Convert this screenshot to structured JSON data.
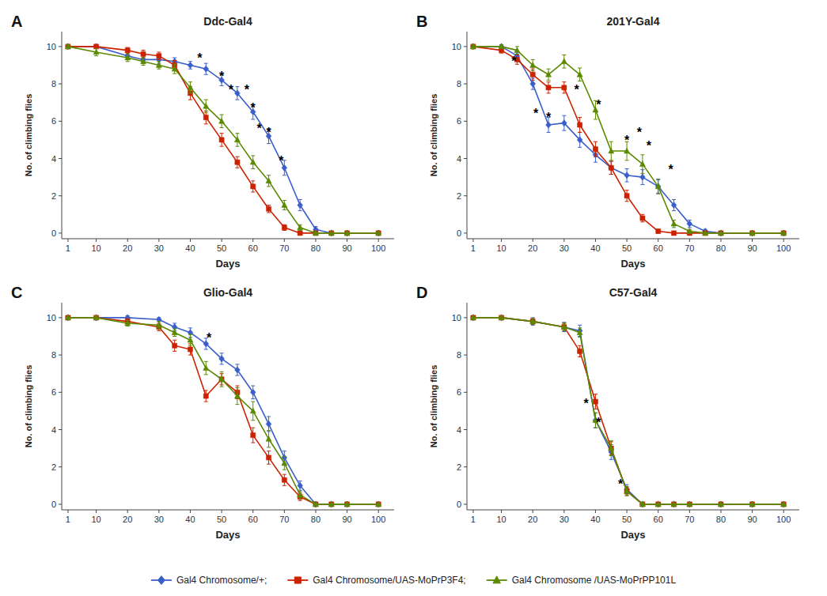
{
  "chart_data": [
    {
      "type": "line",
      "label": "A",
      "title": "Ddc-Gal4",
      "xlabel": "Days",
      "ylabel": "No. of climbing flies",
      "xlim": [
        -1,
        105
      ],
      "ylim": [
        -0.3,
        10.8
      ],
      "xticks": [
        1,
        10,
        20,
        30,
        40,
        50,
        60,
        70,
        80,
        90,
        100
      ],
      "yticks": [
        0,
        2,
        4,
        6,
        8,
        10
      ],
      "grid": false,
      "legend": "bottom",
      "x": [
        1,
        10,
        20,
        25,
        30,
        35,
        40,
        45,
        50,
        55,
        60,
        65,
        70,
        75,
        80,
        85,
        90,
        100
      ],
      "series": [
        {
          "name": "Gal4 Chromosome/+;",
          "color": "#3A5FCD",
          "marker": "diamond",
          "values": [
            10,
            10,
            9.5,
            9.3,
            9.3,
            9.2,
            9.0,
            8.8,
            8.2,
            7.5,
            6.5,
            5.2,
            3.5,
            1.5,
            0.2,
            0.0,
            0.0,
            0.0
          ],
          "errors": [
            0.1,
            0.1,
            0.2,
            0.2,
            0.2,
            0.2,
            0.2,
            0.3,
            0.3,
            0.35,
            0.4,
            0.4,
            0.4,
            0.3,
            0.15,
            0.0,
            0.0,
            0.0
          ]
        },
        {
          "name": "Gal4 Chromosome/UAS-MoPrP3F4;",
          "color": "#CC2200",
          "marker": "square",
          "values": [
            10,
            10,
            9.8,
            9.6,
            9.5,
            9.0,
            7.5,
            6.2,
            5.0,
            3.8,
            2.5,
            1.3,
            0.3,
            0.0,
            0.0,
            0.0,
            0.0,
            0.0
          ],
          "errors": [
            0.1,
            0.1,
            0.15,
            0.2,
            0.2,
            0.25,
            0.35,
            0.35,
            0.35,
            0.3,
            0.3,
            0.2,
            0.15,
            0.0,
            0.0,
            0.0,
            0.0,
            0.0
          ]
        },
        {
          "name": "Gal4 Chromosome /UAS-MoPrPP101L",
          "color": "#5B8A00",
          "marker": "triangle",
          "values": [
            10,
            9.7,
            9.4,
            9.2,
            9.0,
            8.8,
            7.8,
            6.8,
            6.0,
            5.0,
            3.8,
            2.8,
            1.5,
            0.3,
            0.0,
            0.0,
            0.0,
            0.0
          ],
          "errors": [
            0.1,
            0.2,
            0.2,
            0.2,
            0.2,
            0.25,
            0.3,
            0.35,
            0.35,
            0.35,
            0.35,
            0.3,
            0.25,
            0.15,
            0.0,
            0.0,
            0.0,
            0.0
          ]
        }
      ],
      "annotations": [
        {
          "text": "*",
          "x": 43,
          "y": 9.5
        },
        {
          "text": "*",
          "x": 50,
          "y": 8.5
        },
        {
          "text": "*",
          "x": 53,
          "y": 7.8
        },
        {
          "text": "*",
          "x": 58,
          "y": 7.8
        },
        {
          "text": "*",
          "x": 60,
          "y": 6.8
        },
        {
          "text": "*",
          "x": 62,
          "y": 5.7
        },
        {
          "text": "*",
          "x": 65,
          "y": 5.5
        },
        {
          "text": "*",
          "x": 69,
          "y": 4.0
        }
      ]
    },
    {
      "type": "line",
      "label": "B",
      "title": "201Y-Gal4",
      "xlabel": "Days",
      "ylabel": "No. of climbing flies",
      "xlim": [
        -1,
        105
      ],
      "ylim": [
        -0.3,
        10.8
      ],
      "xticks": [
        1,
        10,
        20,
        30,
        40,
        50,
        60,
        70,
        80,
        90,
        100
      ],
      "yticks": [
        0,
        2,
        4,
        6,
        8,
        10
      ],
      "grid": false,
      "x": [
        1,
        10,
        15,
        20,
        25,
        30,
        35,
        40,
        45,
        50,
        55,
        60,
        65,
        70,
        75,
        80,
        90,
        100
      ],
      "series": [
        {
          "color": "#3A5FCD",
          "marker": "diamond",
          "values": [
            10,
            10,
            9.5,
            8.0,
            5.8,
            5.9,
            5.0,
            4.2,
            3.5,
            3.1,
            3.0,
            2.5,
            1.5,
            0.5,
            0.1,
            0.0,
            0.0,
            0.0
          ],
          "errors": [
            0.1,
            0.1,
            0.2,
            0.3,
            0.4,
            0.4,
            0.4,
            0.4,
            0.35,
            0.35,
            0.4,
            0.35,
            0.3,
            0.2,
            0.1,
            0.0,
            0.0,
            0.0
          ]
        },
        {
          "color": "#CC2200",
          "marker": "square",
          "values": [
            10,
            9.8,
            9.3,
            8.5,
            7.8,
            7.8,
            5.8,
            4.5,
            3.5,
            2.0,
            0.8,
            0.1,
            0.0,
            0.0,
            0.0,
            0.0,
            0.0,
            0.0
          ],
          "errors": [
            0.1,
            0.15,
            0.25,
            0.3,
            0.3,
            0.3,
            0.4,
            0.4,
            0.35,
            0.3,
            0.2,
            0.1,
            0.0,
            0.0,
            0.0,
            0.0,
            0.0,
            0.0
          ]
        },
        {
          "color": "#5B8A00",
          "marker": "triangle",
          "values": [
            10,
            10,
            9.8,
            9.0,
            8.5,
            9.2,
            8.5,
            6.6,
            4.4,
            4.4,
            3.7,
            2.5,
            0.5,
            0.1,
            0.0,
            0.0,
            0.0,
            0.0
          ],
          "errors": [
            0.1,
            0.1,
            0.2,
            0.3,
            0.3,
            0.35,
            0.35,
            0.5,
            0.5,
            0.5,
            0.5,
            0.4,
            0.2,
            0.1,
            0.0,
            0.0,
            0.0,
            0.0
          ]
        }
      ],
      "annotations": [
        {
          "text": "*",
          "x": 14,
          "y": 9.3
        },
        {
          "text": "*",
          "x": 21,
          "y": 6.5
        },
        {
          "text": "*",
          "x": 25,
          "y": 6.3
        },
        {
          "text": "*",
          "x": 34,
          "y": 7.8
        },
        {
          "text": "*",
          "x": 41,
          "y": 7.0
        },
        {
          "text": "*",
          "x": 50,
          "y": 5.1
        },
        {
          "text": "*",
          "x": 54,
          "y": 5.5
        },
        {
          "text": "*",
          "x": 57,
          "y": 4.8
        },
        {
          "text": "*",
          "x": 64,
          "y": 3.5
        }
      ]
    },
    {
      "type": "line",
      "label": "C",
      "title": "Glio-Gal4",
      "xlabel": "Days",
      "ylabel": "No. of climbing flies",
      "xlim": [
        -1,
        105
      ],
      "ylim": [
        -0.3,
        10.8
      ],
      "xticks": [
        1,
        10,
        20,
        30,
        40,
        50,
        60,
        70,
        80,
        90,
        100
      ],
      "yticks": [
        0,
        2,
        4,
        6,
        8,
        10
      ],
      "grid": false,
      "x": [
        1,
        10,
        20,
        30,
        35,
        40,
        45,
        50,
        55,
        60,
        65,
        70,
        75,
        80,
        85,
        90,
        100
      ],
      "series": [
        {
          "color": "#3A5FCD",
          "marker": "diamond",
          "values": [
            10,
            10,
            10,
            9.9,
            9.5,
            9.2,
            8.6,
            7.8,
            7.2,
            6.0,
            4.3,
            2.5,
            1.0,
            0.0,
            0.0,
            0.0,
            0.0
          ],
          "errors": [
            0.0,
            0.1,
            0.1,
            0.1,
            0.2,
            0.25,
            0.3,
            0.3,
            0.3,
            0.35,
            0.4,
            0.35,
            0.25,
            0.0,
            0.0,
            0.0,
            0.0
          ]
        },
        {
          "color": "#CC2200",
          "marker": "square",
          "values": [
            10,
            10,
            9.8,
            9.5,
            8.5,
            8.3,
            5.8,
            6.7,
            6.0,
            3.7,
            2.5,
            1.3,
            0.4,
            0.0,
            0.0,
            0.0,
            0.0
          ],
          "errors": [
            0.0,
            0.1,
            0.15,
            0.2,
            0.3,
            0.3,
            0.3,
            0.3,
            0.35,
            0.4,
            0.35,
            0.3,
            0.2,
            0.0,
            0.0,
            0.0,
            0.0
          ]
        },
        {
          "color": "#5B8A00",
          "marker": "triangle",
          "values": [
            10,
            10,
            9.7,
            9.6,
            9.2,
            8.8,
            7.3,
            6.7,
            5.8,
            5.0,
            3.5,
            2.2,
            0.5,
            0.0,
            0.0,
            0.0,
            0.0
          ],
          "errors": [
            0.0,
            0.1,
            0.15,
            0.2,
            0.2,
            0.3,
            0.35,
            0.4,
            0.45,
            0.5,
            0.45,
            0.35,
            0.2,
            0.0,
            0.0,
            0.0,
            0.0
          ]
        }
      ],
      "annotations": [
        {
          "text": "*",
          "x": 46,
          "y": 9.0
        }
      ]
    },
    {
      "type": "line",
      "label": "D",
      "title": "C57-Gal4",
      "xlabel": "Days",
      "ylabel": "No. of climbing flies",
      "xlim": [
        -1,
        105
      ],
      "ylim": [
        -0.3,
        10.8
      ],
      "xticks": [
        1,
        10,
        20,
        30,
        40,
        50,
        60,
        70,
        80,
        90,
        100
      ],
      "yticks": [
        0,
        2,
        4,
        6,
        8,
        10
      ],
      "grid": false,
      "x": [
        1,
        10,
        20,
        30,
        35,
        40,
        45,
        50,
        55,
        60,
        65,
        70,
        80,
        90,
        100
      ],
      "series": [
        {
          "color": "#3A5FCD",
          "marker": "diamond",
          "values": [
            10,
            10,
            9.8,
            9.5,
            9.3,
            4.5,
            2.8,
            0.8,
            0.0,
            0.0,
            0.0,
            0.0,
            0.0,
            0.0,
            0.0
          ],
          "errors": [
            0.0,
            0.1,
            0.2,
            0.25,
            0.3,
            0.4,
            0.4,
            0.25,
            0.1,
            0.0,
            0.0,
            0.0,
            0.0,
            0.0,
            0.0
          ]
        },
        {
          "color": "#CC2200",
          "marker": "square",
          "values": [
            10,
            10,
            9.8,
            9.5,
            8.2,
            5.5,
            3.0,
            0.7,
            0.0,
            0.0,
            0.0,
            0.0,
            0.0,
            0.0,
            0.0
          ],
          "errors": [
            0.0,
            0.1,
            0.15,
            0.2,
            0.3,
            0.4,
            0.35,
            0.2,
            0.1,
            0.0,
            0.0,
            0.0,
            0.0,
            0.0,
            0.0
          ]
        },
        {
          "color": "#5B8A00",
          "marker": "triangle",
          "values": [
            10,
            10,
            9.8,
            9.5,
            9.2,
            4.5,
            3.0,
            0.7,
            0.0,
            0.0,
            0.0,
            0.0,
            0.0,
            0.0,
            0.0
          ],
          "errors": [
            0.0,
            0.1,
            0.15,
            0.2,
            0.25,
            0.4,
            0.4,
            0.25,
            0.1,
            0.0,
            0.0,
            0.0,
            0.0,
            0.0,
            0.0
          ]
        }
      ],
      "annotations": [
        {
          "text": "*",
          "x": 37,
          "y": 5.5
        },
        {
          "text": "*",
          "x": 41,
          "y": 4.5
        },
        {
          "text": "*",
          "x": 48,
          "y": 1.2
        }
      ]
    }
  ]
}
